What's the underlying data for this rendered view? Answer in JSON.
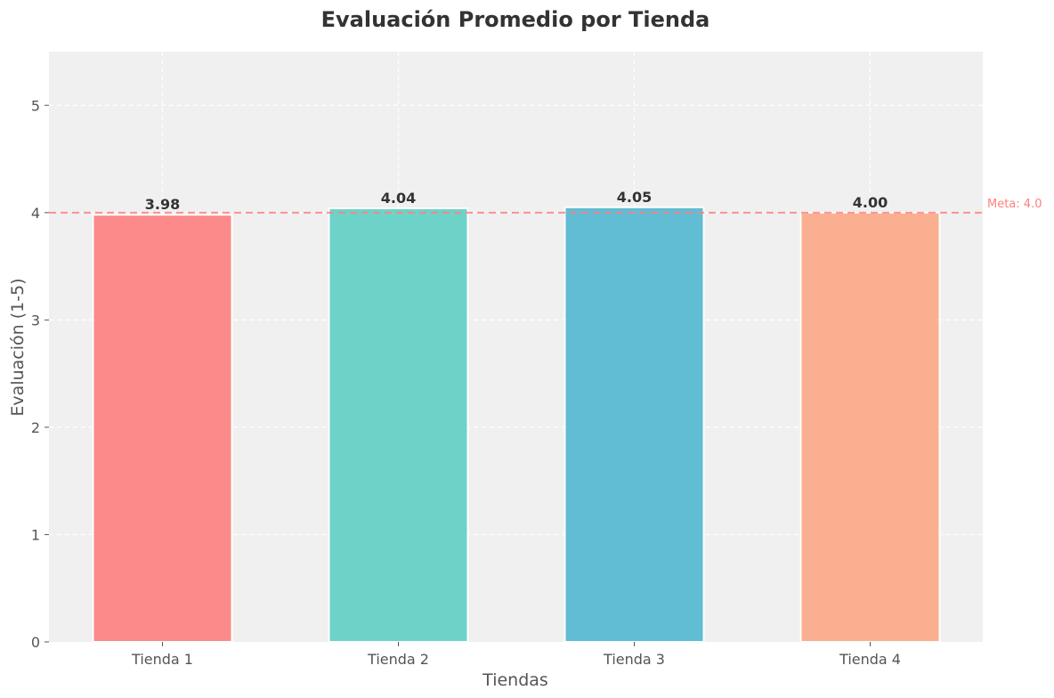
{
  "chart_data": {
    "type": "bar",
    "title": "Evaluación Promedio por Tienda",
    "xlabel": "Tiendas",
    "ylabel": "Evaluación (1-5)",
    "categories": [
      "Tienda 1",
      "Tienda 2",
      "Tienda 3",
      "Tienda 4"
    ],
    "values": [
      3.98,
      4.04,
      4.05,
      4.0
    ],
    "data_labels": [
      "3.98",
      "4.04",
      "4.05",
      "4.00"
    ],
    "colors": [
      "#ff7f7f",
      "#5fd0c5",
      "#52b8d2",
      "#fca986"
    ],
    "ylim": [
      0,
      5.5
    ],
    "yticks": [
      0,
      1,
      2,
      3,
      4,
      5
    ],
    "ytick_labels": [
      "0",
      "1",
      "2",
      "3",
      "4",
      "5"
    ],
    "grid": true,
    "reference_line": {
      "value": 4.0,
      "label": "Meta: 4.0",
      "color": "#ff7f7f",
      "style": "dashed"
    }
  }
}
